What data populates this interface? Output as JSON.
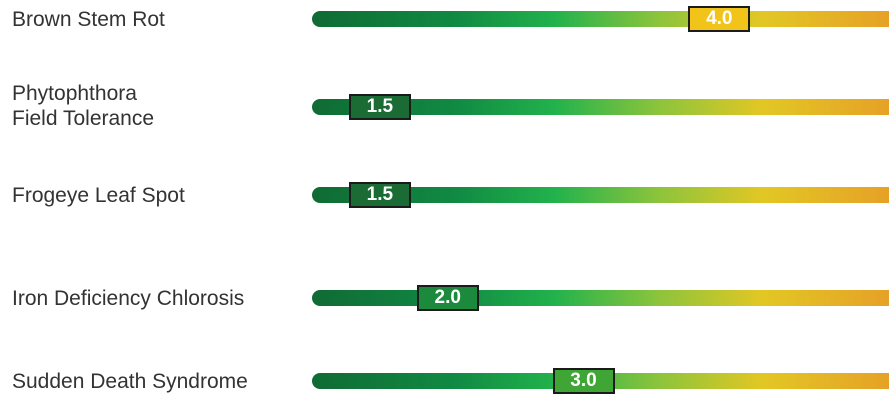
{
  "chart_data": {
    "type": "bar",
    "title": "",
    "xlabel": "",
    "ylabel": "",
    "xlim": [
      1,
      5.25
    ],
    "categories": [
      "Brown Stem Rot",
      "Phytophthora\nField Tolerance",
      "Frogeye Leaf Spot",
      "Iron Deficiency Chlorosis",
      "Sudden Death Syndrome"
    ],
    "values": [
      4.0,
      1.5,
      1.5,
      2.0,
      3.0
    ],
    "value_labels": [
      "4.0",
      "1.5",
      "1.5",
      "2.0",
      "3.0"
    ],
    "badge_colors": [
      "#f2c318",
      "#1b6b34",
      "#1b6b34",
      "#1b8a3c",
      "#3fa535"
    ],
    "gradient_colors": [
      "#0f6b34",
      "#118a43",
      "#22b24c",
      "#8cc43c",
      "#e2c724",
      "#e6a127"
    ]
  }
}
